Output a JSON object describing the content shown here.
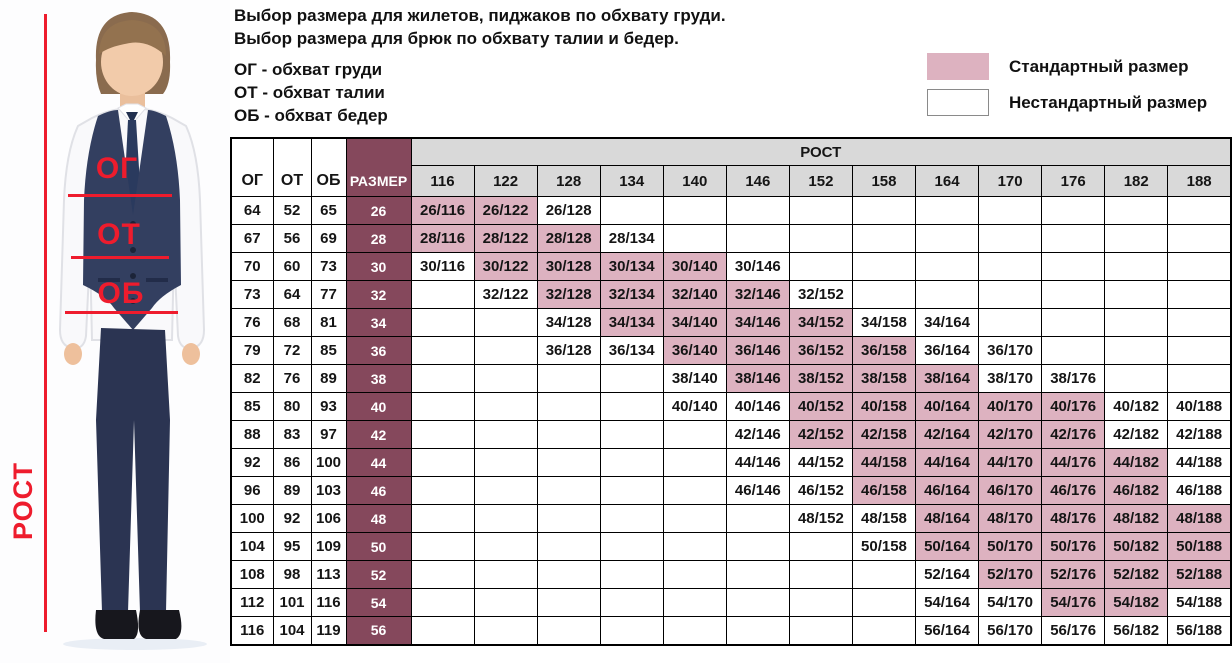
{
  "header": {
    "intro_lines": [
      "Выбор размера для жилетов, пиджаков по обхвату груди.",
      "Выбор размера для брюк по обхвату талии и бедер."
    ],
    "abbreviations": [
      "ОГ - обхват груди",
      "ОТ - обхват талии",
      "ОБ - обхват бедер"
    ]
  },
  "legend": {
    "standard": "Стандартный размер",
    "nonstandard": "Нестандартный размер"
  },
  "photo": {
    "chest_label": "ОГ",
    "waist_label": "ОТ",
    "hip_label": "ОБ",
    "height_label": "РОСТ"
  },
  "colors": {
    "standard_pink": "#ddb2c0",
    "size_maroon": "#85485c",
    "header_gray": "#d9d9d9",
    "annotation_red": "#ee1c2d",
    "table_border": "#000000"
  },
  "chart_data": {
    "type": "table",
    "title": "Выбор размера для жилетов, пиджаков по обхвату груди. Выбор размера для брюк по обхвату талии и бедер.",
    "columns": {
      "og": "ОГ",
      "ot": "ОТ",
      "ob": "ОБ",
      "size": "РАЗМЕР",
      "rost": "РОСТ"
    },
    "heights": [
      116,
      122,
      128,
      134,
      140,
      146,
      152,
      158,
      164,
      170,
      176,
      182,
      188
    ],
    "rows": [
      {
        "og": 64,
        "ot": 52,
        "ob": 65,
        "size": 26,
        "cells": [
          [
            "26/116",
            true
          ],
          [
            "26/122",
            true
          ],
          [
            "26/128",
            false
          ]
        ]
      },
      {
        "og": 67,
        "ot": 56,
        "ob": 69,
        "size": 28,
        "cells": [
          [
            "28/116",
            true
          ],
          [
            "28/122",
            true
          ],
          [
            "28/128",
            true
          ],
          [
            "28/134",
            false
          ]
        ]
      },
      {
        "og": 70,
        "ot": 60,
        "ob": 73,
        "size": 30,
        "cells": [
          [
            "30/116",
            false
          ],
          [
            "30/122",
            true
          ],
          [
            "30/128",
            true
          ],
          [
            "30/134",
            true
          ],
          [
            "30/140",
            true
          ],
          [
            "30/146",
            false
          ]
        ]
      },
      {
        "og": 73,
        "ot": 64,
        "ob": 77,
        "size": 32,
        "cells": [
          [
            "32/122",
            false
          ],
          [
            "32/128",
            true
          ],
          [
            "32/134",
            true
          ],
          [
            "32/140",
            true
          ],
          [
            "32/146",
            true
          ],
          [
            "32/152",
            false
          ]
        ]
      },
      {
        "og": 76,
        "ot": 68,
        "ob": 81,
        "size": 34,
        "cells": [
          [
            "34/128",
            false
          ],
          [
            "34/134",
            true
          ],
          [
            "34/140",
            true
          ],
          [
            "34/146",
            true
          ],
          [
            "34/152",
            true
          ],
          [
            "34/158",
            false
          ],
          [
            "34/164",
            false
          ]
        ]
      },
      {
        "og": 79,
        "ot": 72,
        "ob": 85,
        "size": 36,
        "cells": [
          [
            "36/128",
            false
          ],
          [
            "36/134",
            false
          ],
          [
            "36/140",
            true
          ],
          [
            "36/146",
            true
          ],
          [
            "36/152",
            true
          ],
          [
            "36/158",
            true
          ],
          [
            "36/164",
            false
          ],
          [
            "36/170",
            false
          ]
        ]
      },
      {
        "og": 82,
        "ot": 76,
        "ob": 89,
        "size": 38,
        "cells": [
          [
            "38/140",
            false
          ],
          [
            "38/146",
            true
          ],
          [
            "38/152",
            true
          ],
          [
            "38/158",
            true
          ],
          [
            "38/164",
            true
          ],
          [
            "38/170",
            false
          ],
          [
            "38/176",
            false
          ]
        ]
      },
      {
        "og": 85,
        "ot": 80,
        "ob": 93,
        "size": 40,
        "cells": [
          [
            "40/140",
            false
          ],
          [
            "40/146",
            false
          ],
          [
            "40/152",
            true
          ],
          [
            "40/158",
            true
          ],
          [
            "40/164",
            true
          ],
          [
            "40/170",
            true
          ],
          [
            "40/176",
            true
          ],
          [
            "40/182",
            false
          ],
          [
            "40/188",
            false
          ]
        ]
      },
      {
        "og": 88,
        "ot": 83,
        "ob": 97,
        "size": 42,
        "cells": [
          [
            "42/146",
            false
          ],
          [
            "42/152",
            true
          ],
          [
            "42/158",
            true
          ],
          [
            "42/164",
            true
          ],
          [
            "42/170",
            true
          ],
          [
            "42/176",
            true
          ],
          [
            "42/182",
            false
          ],
          [
            "42/188",
            false
          ]
        ]
      },
      {
        "og": 92,
        "ot": 86,
        "ob": 100,
        "size": 44,
        "cells": [
          [
            "44/146",
            false
          ],
          [
            "44/152",
            false
          ],
          [
            "44/158",
            true
          ],
          [
            "44/164",
            true
          ],
          [
            "44/170",
            true
          ],
          [
            "44/176",
            true
          ],
          [
            "44/182",
            true
          ],
          [
            "44/188",
            false
          ]
        ]
      },
      {
        "og": 96,
        "ot": 89,
        "ob": 103,
        "size": 46,
        "cells": [
          [
            "46/146",
            false
          ],
          [
            "46/152",
            false
          ],
          [
            "46/158",
            true
          ],
          [
            "46/164",
            true
          ],
          [
            "46/170",
            true
          ],
          [
            "46/176",
            true
          ],
          [
            "46/182",
            true
          ],
          [
            "46/188",
            false
          ]
        ]
      },
      {
        "og": 100,
        "ot": 92,
        "ob": 106,
        "size": 48,
        "cells": [
          [
            "48/152",
            false
          ],
          [
            "48/158",
            false
          ],
          [
            "48/164",
            true
          ],
          [
            "48/170",
            true
          ],
          [
            "48/176",
            true
          ],
          [
            "48/182",
            true
          ],
          [
            "48/188",
            true
          ]
        ]
      },
      {
        "og": 104,
        "ot": 95,
        "ob": 109,
        "size": 50,
        "cells": [
          [
            "50/158",
            false
          ],
          [
            "50/164",
            true
          ],
          [
            "50/170",
            true
          ],
          [
            "50/176",
            true
          ],
          [
            "50/182",
            true
          ],
          [
            "50/188",
            true
          ]
        ]
      },
      {
        "og": 108,
        "ot": 98,
        "ob": 113,
        "size": 52,
        "cells": [
          [
            "52/164",
            false
          ],
          [
            "52/170",
            true
          ],
          [
            "52/176",
            true
          ],
          [
            "52/182",
            true
          ],
          [
            "52/188",
            true
          ]
        ]
      },
      {
        "og": 112,
        "ot": 101,
        "ob": 116,
        "size": 54,
        "cells": [
          [
            "54/164",
            false
          ],
          [
            "54/170",
            false
          ],
          [
            "54/176",
            true
          ],
          [
            "54/182",
            true
          ],
          [
            "54/188",
            false
          ]
        ]
      },
      {
        "og": 116,
        "ot": 104,
        "ob": 119,
        "size": 56,
        "cells": [
          [
            "56/164",
            false
          ],
          [
            "56/170",
            false
          ],
          [
            "56/176",
            false
          ],
          [
            "56/182",
            false
          ],
          [
            "56/188",
            false
          ]
        ]
      }
    ]
  }
}
